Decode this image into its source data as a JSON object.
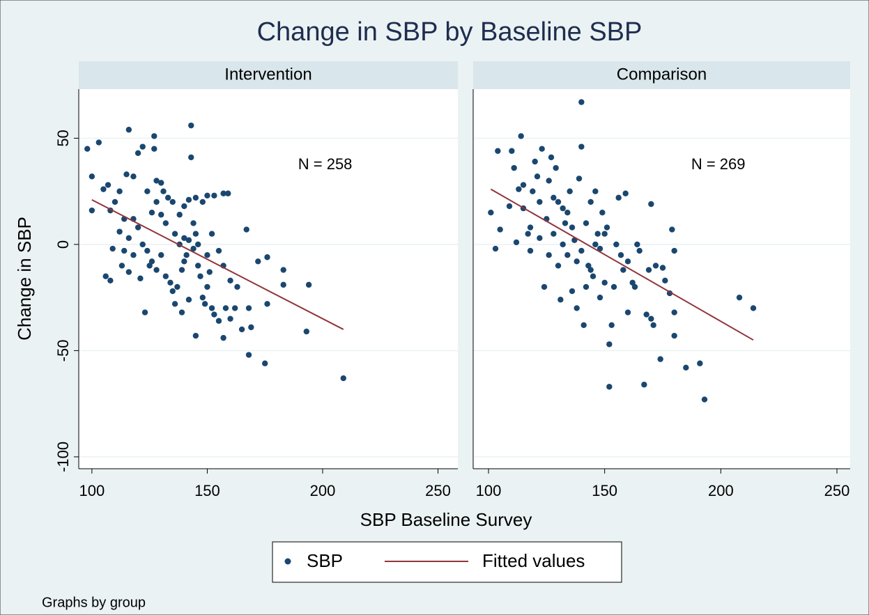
{
  "figure": {
    "title": "Change in SBP by Baseline SBP",
    "x_label": "SBP Baseline Survey",
    "y_label": "Change in SBP",
    "note": "Graphs by group"
  },
  "chart_data": [
    {
      "type": "scatter",
      "title": "Intervention",
      "annotation": "N = 258",
      "xlim": [
        94.3,
        258.6
      ],
      "ylim": [
        -105.6,
        73.1
      ],
      "xticks": [
        100,
        150,
        200,
        250
      ],
      "yticks": [
        50,
        0,
        -50,
        -100
      ],
      "grid": true,
      "series": [
        {
          "name": "SBP",
          "type": "scatter",
          "color": "#1a476f",
          "x": [
            98,
            103,
            100,
            100,
            105,
            107,
            108,
            110,
            112,
            115,
            116,
            118,
            114,
            112,
            113,
            109,
            106,
            108,
            116,
            118,
            120,
            122,
            127,
            127,
            124,
            126,
            128,
            130,
            131,
            133,
            135,
            138,
            140,
            142,
            143,
            143,
            145,
            148,
            150,
            153,
            157,
            159,
            120,
            122,
            124,
            126,
            128,
            130,
            132,
            134,
            135,
            137,
            139,
            140,
            141,
            142,
            144,
            145,
            146,
            147,
            148,
            149,
            150,
            152,
            153,
            155,
            157,
            158,
            160,
            162,
            163,
            165,
            145,
            123,
            167,
            168,
            168,
            169,
            172,
            175,
            176,
            176,
            183,
            183,
            194,
            193,
            209,
            150,
            152,
            155,
            157,
            160,
            136,
            138,
            140,
            144,
            146,
            132,
            130,
            128,
            125,
            121,
            118,
            116,
            114,
            136,
            139,
            142,
            151
          ],
          "values": [
            45,
            48,
            32,
            16,
            26,
            28,
            16,
            20,
            25,
            33,
            54,
            32,
            12,
            6,
            -10,
            -2,
            -15,
            -17,
            -13,
            -5,
            43,
            46,
            45,
            51,
            25,
            15,
            30,
            29,
            25,
            22,
            20,
            14,
            18,
            21,
            56,
            41,
            22,
            20,
            23,
            23,
            24,
            24,
            8,
            0,
            -3,
            -8,
            -12,
            -5,
            -15,
            -18,
            -22,
            -20,
            -12,
            -8,
            -5,
            2,
            -2,
            5,
            -10,
            -15,
            -25,
            -28,
            -20,
            -30,
            -33,
            -36,
            -44,
            -30,
            -35,
            -30,
            -20,
            -40,
            -43,
            -32,
            7,
            -52,
            -30,
            -39,
            -8,
            -56,
            -6,
            -28,
            -12,
            -19,
            -19,
            -41,
            -63,
            -5,
            5,
            -3,
            -10,
            -17,
            5,
            0,
            3,
            10,
            0,
            10,
            14,
            20,
            -10,
            -16,
            12,
            3,
            -3,
            -28,
            -32,
            -26,
            -13
          ]
        },
        {
          "name": "Fitted values",
          "type": "line",
          "color": "#90353b",
          "x": [
            100,
            209
          ],
          "values": [
            21,
            -40
          ]
        }
      ]
    },
    {
      "type": "scatter",
      "title": "Comparison",
      "annotation": "N = 269",
      "xlim": [
        93.4,
        255.7
      ],
      "ylim": [
        -105.6,
        73.1
      ],
      "xticks": [
        100,
        150,
        200,
        250
      ],
      "yticks": [
        50,
        0,
        -50,
        -100
      ],
      "grid": true,
      "series": [
        {
          "name": "SBP",
          "type": "scatter",
          "color": "#1a476f",
          "x": [
            101,
            103,
            104,
            105,
            109,
            110,
            111,
            113,
            114,
            115,
            117,
            118,
            119,
            120,
            121,
            122,
            123,
            124,
            125,
            126,
            127,
            128,
            129,
            130,
            131,
            132,
            133,
            134,
            135,
            136,
            137,
            138,
            139,
            140,
            140,
            141,
            142,
            143,
            144,
            145,
            146,
            147,
            148,
            149,
            150,
            151,
            152,
            152,
            153,
            154,
            155,
            156,
            157,
            158,
            159,
            160,
            162,
            164,
            165,
            167,
            168,
            169,
            170,
            171,
            172,
            174,
            175,
            176,
            178,
            179,
            180,
            180,
            180,
            185,
            191,
            193,
            208,
            214,
            118,
            122,
            126,
            128,
            130,
            132,
            134,
            136,
            138,
            140,
            142,
            144,
            146,
            148,
            150,
            115,
            112,
            160,
            163,
            170
          ],
          "values": [
            15,
            -2,
            44,
            7,
            18,
            44,
            36,
            26,
            51,
            17,
            5,
            -3,
            25,
            39,
            32,
            20,
            45,
            -20,
            12,
            30,
            41,
            22,
            36,
            20,
            -26,
            17,
            10,
            -5,
            25,
            -22,
            2,
            -30,
            31,
            67,
            46,
            -38,
            10,
            -10,
            20,
            -15,
            25,
            5,
            -2,
            15,
            -18,
            8,
            -47,
            -67,
            -38,
            -20,
            0,
            22,
            -5,
            -12,
            24,
            -32,
            -18,
            0,
            -3,
            -66,
            -33,
            -12,
            19,
            -38,
            -10,
            -54,
            -11,
            -17,
            -23,
            7,
            -32,
            -43,
            -3,
            -58,
            -56,
            -73,
            -25,
            -30,
            8,
            3,
            -5,
            5,
            -10,
            0,
            15,
            8,
            -8,
            -3,
            -20,
            -12,
            0,
            -25,
            5,
            28,
            1,
            -8,
            -20,
            -35
          ]
        },
        {
          "name": "Fitted values",
          "type": "line",
          "color": "#90353b",
          "x": [
            101,
            214
          ],
          "values": [
            26,
            -45
          ]
        }
      ]
    }
  ]
}
